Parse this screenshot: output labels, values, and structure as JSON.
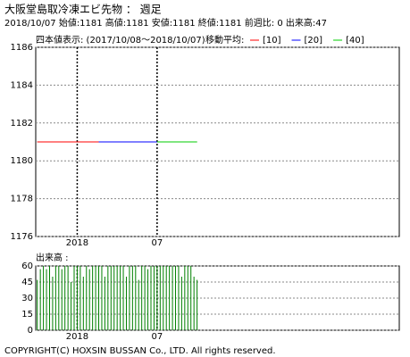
{
  "chart_data": [
    {
      "type": "line",
      "title": "大阪堂島取冷凍エビ先物 ： 週足",
      "subtitle": "2018/10/07 始値:1181 高値:1181 安値:1181 終値:1181 前週比: 0 出来高:47",
      "range_label": "四本値表示: (2017/10/08～2018/10/07)",
      "legend_title": "移動平均:",
      "categories": [
        null,
        null,
        null,
        null,
        null,
        null,
        null,
        null,
        null,
        null,
        null,
        null,
        null,
        "2018",
        null,
        null,
        null,
        null,
        null,
        null,
        null,
        null,
        null,
        null,
        null,
        null,
        null,
        null,
        null,
        null,
        null,
        null,
        null,
        null,
        null,
        null,
        null,
        null,
        null,
        "07",
        null,
        null,
        null,
        null,
        null,
        null,
        null,
        null,
        null,
        null,
        null,
        null,
        null
      ],
      "values": [
        1181,
        1181,
        1181,
        1181,
        1181,
        1181,
        1181,
        1181,
        1181,
        1181,
        1181,
        1181,
        1181,
        1181,
        1181,
        1181,
        1181,
        1181,
        1181,
        1181,
        1181,
        1181,
        1181,
        1181,
        1181,
        1181,
        1181,
        1181,
        1181,
        1181,
        1181,
        1181,
        1181,
        1181,
        1181,
        1181,
        1181,
        1181,
        1181,
        1181,
        1181,
        1181,
        1181,
        1181,
        1181,
        1181,
        1181,
        1181,
        1181,
        1181,
        1181,
        1181,
        1181
      ],
      "color": "#000000",
      "series": [
        {
          "name": "[10]",
          "color": "#ff0000",
          "values": [
            1181,
            1181,
            1181,
            1181,
            1181,
            1181,
            1181,
            1181,
            1181,
            1181,
            1181,
            1181,
            1181,
            1181,
            1181,
            1181,
            1181,
            1181,
            1181,
            1181,
            1181,
            null,
            null,
            null,
            null,
            null,
            null,
            null,
            null,
            null,
            null,
            null,
            null,
            null,
            null,
            null,
            null,
            null,
            null,
            null,
            null,
            null,
            null,
            null,
            null,
            null,
            null,
            null,
            null,
            null,
            null,
            null,
            null
          ]
        },
        {
          "name": "[20]",
          "color": "#0000ff",
          "values": [
            null,
            null,
            null,
            null,
            null,
            null,
            null,
            null,
            null,
            null,
            null,
            null,
            null,
            null,
            null,
            null,
            null,
            null,
            null,
            null,
            1181,
            1181,
            1181,
            1181,
            1181,
            1181,
            1181,
            1181,
            1181,
            1181,
            1181,
            1181,
            1181,
            1181,
            1181,
            1181,
            1181,
            1181,
            1181,
            1181,
            null,
            null,
            null,
            null,
            null,
            null,
            null,
            null,
            null,
            null,
            null,
            null,
            null
          ]
        },
        {
          "name": "[40]",
          "color": "#00cc00",
          "values": [
            null,
            null,
            null,
            null,
            null,
            null,
            null,
            null,
            null,
            null,
            null,
            null,
            null,
            null,
            null,
            null,
            null,
            null,
            null,
            null,
            null,
            null,
            null,
            null,
            null,
            null,
            null,
            null,
            null,
            null,
            null,
            null,
            null,
            null,
            null,
            null,
            null,
            null,
            null,
            1181,
            1181,
            1181,
            1181,
            1181,
            1181,
            1181,
            1181,
            1181,
            1181,
            1181,
            1181,
            1181,
            1181
          ]
        }
      ],
      "ylim": [
        1176,
        1186
      ],
      "yticks": [
        1176,
        1178,
        1180,
        1182,
        1184,
        1186
      ],
      "grid": true
    },
    {
      "type": "bar",
      "title": "出来高 :",
      "color": "#008000",
      "categories": [
        null,
        null,
        null,
        null,
        null,
        null,
        null,
        null,
        null,
        null,
        null,
        null,
        null,
        "2018",
        null,
        null,
        null,
        null,
        null,
        null,
        null,
        null,
        null,
        null,
        null,
        null,
        null,
        null,
        null,
        null,
        null,
        null,
        null,
        null,
        null,
        null,
        null,
        null,
        null,
        "07",
        null,
        null,
        null,
        null,
        null,
        null,
        null,
        null,
        null,
        null,
        null,
        null,
        null
      ],
      "values": [
        47,
        57,
        60,
        57,
        60,
        50,
        60,
        60,
        57,
        60,
        60,
        45,
        60,
        60,
        60,
        50,
        60,
        57,
        60,
        60,
        60,
        60,
        50,
        60,
        60,
        60,
        60,
        60,
        60,
        50,
        60,
        60,
        60,
        47,
        60,
        60,
        57,
        60,
        60,
        60,
        60,
        60,
        60,
        60,
        60,
        60,
        60,
        50,
        60,
        60,
        60,
        50,
        47
      ],
      "ylim": [
        0,
        60
      ],
      "yticks": [
        0,
        15,
        30,
        45,
        60
      ],
      "grid": true
    }
  ],
  "footer": "COPYRIGHT(C) HOXSIN BUSSAN Co., LTD. All rights reserved."
}
